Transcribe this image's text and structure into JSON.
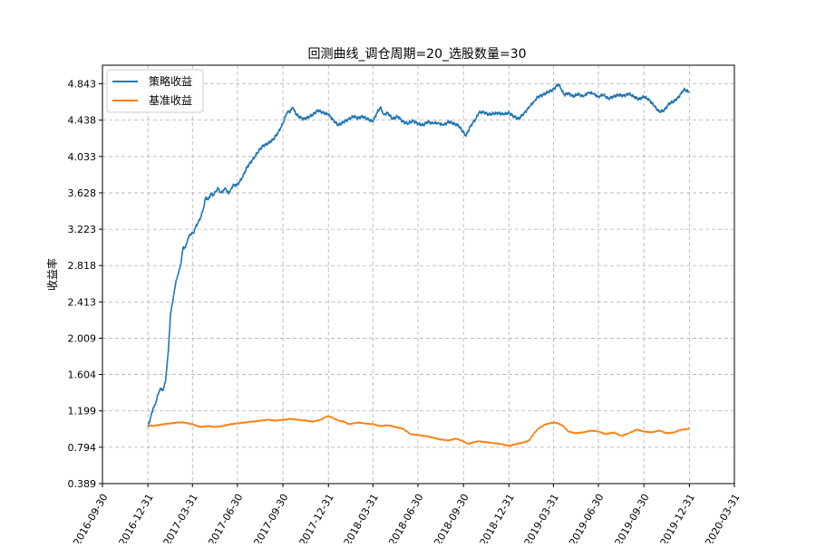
{
  "chart_data": {
    "type": "line",
    "title": "回测曲线_调仓周期=20_选股数量=30",
    "xlabel": "",
    "ylabel": "收益率",
    "x_ticks": [
      "2016-09-30",
      "2016-12-31",
      "2017-03-31",
      "2017-06-30",
      "2017-09-30",
      "2017-12-31",
      "2018-03-31",
      "2018-06-30",
      "2018-09-30",
      "2018-12-31",
      "2019-03-31",
      "2019-06-30",
      "2019-09-30",
      "2019-12-31",
      "2020-03-31"
    ],
    "y_ticks": [
      "0.389",
      "0.794",
      "1.199",
      "1.604",
      "2.009",
      "2.413",
      "2.818",
      "3.223",
      "3.628",
      "4.033",
      "4.438",
      "4.843"
    ],
    "xlim": [
      "2016-09-30",
      "2020-03-31"
    ],
    "ylim": [
      0.389,
      5.05
    ],
    "grid": true,
    "legend_position": "top-left",
    "series": [
      {
        "name": "策略收益",
        "color": "#1f77b4",
        "points": [
          [
            "2016-12-31",
            1.02
          ],
          [
            "2017-01-05",
            1.12
          ],
          [
            "2017-01-10",
            1.22
          ],
          [
            "2017-01-15",
            1.27
          ],
          [
            "2017-01-20",
            1.38
          ],
          [
            "2017-01-25",
            1.45
          ],
          [
            "2017-01-31",
            1.43
          ],
          [
            "2017-02-05",
            1.55
          ],
          [
            "2017-02-10",
            1.85
          ],
          [
            "2017-02-15",
            2.3
          ],
          [
            "2017-02-20",
            2.45
          ],
          [
            "2017-02-25",
            2.62
          ],
          [
            "2017-03-02",
            2.72
          ],
          [
            "2017-03-07",
            2.82
          ],
          [
            "2017-03-12",
            3.02
          ],
          [
            "2017-03-17",
            3.02
          ],
          [
            "2017-03-22",
            3.12
          ],
          [
            "2017-03-27",
            3.17
          ],
          [
            "2017-04-02",
            3.18
          ],
          [
            "2017-04-07",
            3.26
          ],
          [
            "2017-04-12",
            3.3
          ],
          [
            "2017-04-17",
            3.36
          ],
          [
            "2017-04-22",
            3.45
          ],
          [
            "2017-04-27",
            3.58
          ],
          [
            "2017-05-02",
            3.55
          ],
          [
            "2017-05-07",
            3.62
          ],
          [
            "2017-05-12",
            3.6
          ],
          [
            "2017-05-17",
            3.64
          ],
          [
            "2017-05-22",
            3.68
          ],
          [
            "2017-05-27",
            3.63
          ],
          [
            "2017-06-01",
            3.65
          ],
          [
            "2017-06-06",
            3.68
          ],
          [
            "2017-06-11",
            3.62
          ],
          [
            "2017-06-16",
            3.66
          ],
          [
            "2017-06-21",
            3.71
          ],
          [
            "2017-06-30",
            3.72
          ],
          [
            "2017-07-10",
            3.8
          ],
          [
            "2017-07-20",
            3.92
          ],
          [
            "2017-07-31",
            4.0
          ],
          [
            "2017-08-10",
            4.08
          ],
          [
            "2017-08-20",
            4.15
          ],
          [
            "2017-08-31",
            4.18
          ],
          [
            "2017-09-10",
            4.22
          ],
          [
            "2017-09-20",
            4.3
          ],
          [
            "2017-09-30",
            4.4
          ],
          [
            "2017-10-08",
            4.52
          ],
          [
            "2017-10-15",
            4.54
          ],
          [
            "2017-10-20",
            4.58
          ],
          [
            "2017-10-25",
            4.52
          ],
          [
            "2017-10-31",
            4.48
          ],
          [
            "2017-11-10",
            4.45
          ],
          [
            "2017-11-20",
            4.47
          ],
          [
            "2017-11-30",
            4.5
          ],
          [
            "2017-12-10",
            4.55
          ],
          [
            "2017-12-20",
            4.52
          ],
          [
            "2017-12-31",
            4.5
          ],
          [
            "2018-01-10",
            4.44
          ],
          [
            "2018-01-20",
            4.38
          ],
          [
            "2018-01-31",
            4.42
          ],
          [
            "2018-02-10",
            4.45
          ],
          [
            "2018-02-20",
            4.48
          ],
          [
            "2018-02-28",
            4.46
          ],
          [
            "2018-03-10",
            4.48
          ],
          [
            "2018-03-20",
            4.45
          ],
          [
            "2018-03-31",
            4.42
          ],
          [
            "2018-04-08",
            4.52
          ],
          [
            "2018-04-15",
            4.58
          ],
          [
            "2018-04-22",
            4.5
          ],
          [
            "2018-04-30",
            4.52
          ],
          [
            "2018-05-10",
            4.45
          ],
          [
            "2018-05-20",
            4.48
          ],
          [
            "2018-05-31",
            4.42
          ],
          [
            "2018-06-10",
            4.4
          ],
          [
            "2018-06-20",
            4.43
          ],
          [
            "2018-06-30",
            4.4
          ],
          [
            "2018-07-10",
            4.38
          ],
          [
            "2018-07-20",
            4.42
          ],
          [
            "2018-07-31",
            4.4
          ],
          [
            "2018-08-10",
            4.41
          ],
          [
            "2018-08-20",
            4.38
          ],
          [
            "2018-08-31",
            4.42
          ],
          [
            "2018-09-10",
            4.4
          ],
          [
            "2018-09-20",
            4.38
          ],
          [
            "2018-09-30",
            4.3
          ],
          [
            "2018-10-05",
            4.26
          ],
          [
            "2018-10-15",
            4.38
          ],
          [
            "2018-10-25",
            4.45
          ],
          [
            "2018-10-31",
            4.52
          ],
          [
            "2018-11-10",
            4.53
          ],
          [
            "2018-11-20",
            4.5
          ],
          [
            "2018-11-30",
            4.51
          ],
          [
            "2018-12-10",
            4.52
          ],
          [
            "2018-12-20",
            4.5
          ],
          [
            "2018-12-31",
            4.52
          ],
          [
            "2019-01-10",
            4.48
          ],
          [
            "2019-01-20",
            4.45
          ],
          [
            "2019-01-31",
            4.52
          ],
          [
            "2019-02-10",
            4.58
          ],
          [
            "2019-02-20",
            4.65
          ],
          [
            "2019-02-28",
            4.7
          ],
          [
            "2019-03-10",
            4.72
          ],
          [
            "2019-03-20",
            4.75
          ],
          [
            "2019-03-31",
            4.78
          ],
          [
            "2019-04-10",
            4.84
          ],
          [
            "2019-04-15",
            4.79
          ],
          [
            "2019-04-22",
            4.72
          ],
          [
            "2019-04-30",
            4.74
          ],
          [
            "2019-05-10",
            4.7
          ],
          [
            "2019-05-20",
            4.73
          ],
          [
            "2019-05-31",
            4.7
          ],
          [
            "2019-06-10",
            4.75
          ],
          [
            "2019-06-20",
            4.73
          ],
          [
            "2019-06-30",
            4.7
          ],
          [
            "2019-07-10",
            4.72
          ],
          [
            "2019-07-20",
            4.68
          ],
          [
            "2019-07-31",
            4.7
          ],
          [
            "2019-08-10",
            4.72
          ],
          [
            "2019-08-20",
            4.71
          ],
          [
            "2019-08-31",
            4.73
          ],
          [
            "2019-09-10",
            4.7
          ],
          [
            "2019-09-20",
            4.67
          ],
          [
            "2019-09-30",
            4.7
          ],
          [
            "2019-10-10",
            4.67
          ],
          [
            "2019-10-20",
            4.6
          ],
          [
            "2019-10-31",
            4.53
          ],
          [
            "2019-11-10",
            4.55
          ],
          [
            "2019-11-20",
            4.62
          ],
          [
            "2019-11-30",
            4.65
          ],
          [
            "2019-12-10",
            4.7
          ],
          [
            "2019-12-20",
            4.78
          ],
          [
            "2019-12-31",
            4.75
          ]
        ]
      },
      {
        "name": "基准收益",
        "color": "#ff7f0e",
        "points": [
          [
            "2016-12-31",
            1.04
          ],
          [
            "2017-01-10",
            1.03
          ],
          [
            "2017-01-20",
            1.04
          ],
          [
            "2017-01-31",
            1.05
          ],
          [
            "2017-02-15",
            1.06
          ],
          [
            "2017-02-28",
            1.07
          ],
          [
            "2017-03-15",
            1.07
          ],
          [
            "2017-03-31",
            1.05
          ],
          [
            "2017-04-15",
            1.02
          ],
          [
            "2017-04-30",
            1.03
          ],
          [
            "2017-05-15",
            1.02
          ],
          [
            "2017-05-31",
            1.03
          ],
          [
            "2017-06-15",
            1.05
          ],
          [
            "2017-06-30",
            1.06
          ],
          [
            "2017-07-15",
            1.07
          ],
          [
            "2017-07-31",
            1.08
          ],
          [
            "2017-08-15",
            1.09
          ],
          [
            "2017-08-31",
            1.1
          ],
          [
            "2017-09-15",
            1.09
          ],
          [
            "2017-09-30",
            1.1
          ],
          [
            "2017-10-15",
            1.11
          ],
          [
            "2017-10-31",
            1.1
          ],
          [
            "2017-11-15",
            1.09
          ],
          [
            "2017-11-30",
            1.08
          ],
          [
            "2017-12-15",
            1.1
          ],
          [
            "2017-12-25",
            1.13
          ],
          [
            "2017-12-31",
            1.14
          ],
          [
            "2018-01-10",
            1.12
          ],
          [
            "2018-01-20",
            1.09
          ],
          [
            "2018-01-31",
            1.08
          ],
          [
            "2018-02-10",
            1.05
          ],
          [
            "2018-02-28",
            1.07
          ],
          [
            "2018-03-15",
            1.06
          ],
          [
            "2018-03-31",
            1.05
          ],
          [
            "2018-04-15",
            1.03
          ],
          [
            "2018-04-30",
            1.04
          ],
          [
            "2018-05-15",
            1.02
          ],
          [
            "2018-05-31",
            1.0
          ],
          [
            "2018-06-15",
            0.94
          ],
          [
            "2018-06-30",
            0.93
          ],
          [
            "2018-07-15",
            0.92
          ],
          [
            "2018-07-31",
            0.9
          ],
          [
            "2018-08-15",
            0.88
          ],
          [
            "2018-08-31",
            0.87
          ],
          [
            "2018-09-15",
            0.89
          ],
          [
            "2018-09-30",
            0.86
          ],
          [
            "2018-10-10",
            0.83
          ],
          [
            "2018-10-20",
            0.85
          ],
          [
            "2018-10-31",
            0.86
          ],
          [
            "2018-11-15",
            0.85
          ],
          [
            "2018-11-30",
            0.84
          ],
          [
            "2018-12-15",
            0.83
          ],
          [
            "2018-12-31",
            0.81
          ],
          [
            "2019-01-15",
            0.83
          ],
          [
            "2019-01-31",
            0.85
          ],
          [
            "2019-02-10",
            0.87
          ],
          [
            "2019-02-20",
            0.95
          ],
          [
            "2019-02-28",
            1.0
          ],
          [
            "2019-03-15",
            1.05
          ],
          [
            "2019-03-31",
            1.07
          ],
          [
            "2019-04-10",
            1.06
          ],
          [
            "2019-04-20",
            1.03
          ],
          [
            "2019-04-30",
            0.97
          ],
          [
            "2019-05-15",
            0.95
          ],
          [
            "2019-05-31",
            0.96
          ],
          [
            "2019-06-15",
            0.98
          ],
          [
            "2019-06-30",
            0.97
          ],
          [
            "2019-07-15",
            0.94
          ],
          [
            "2019-07-31",
            0.96
          ],
          [
            "2019-08-15",
            0.92
          ],
          [
            "2019-08-31",
            0.95
          ],
          [
            "2019-09-15",
            0.99
          ],
          [
            "2019-09-30",
            0.97
          ],
          [
            "2019-10-15",
            0.96
          ],
          [
            "2019-10-31",
            0.98
          ],
          [
            "2019-11-15",
            0.95
          ],
          [
            "2019-11-30",
            0.96
          ],
          [
            "2019-12-15",
            0.99
          ],
          [
            "2019-12-31",
            1.0
          ]
        ]
      }
    ]
  }
}
